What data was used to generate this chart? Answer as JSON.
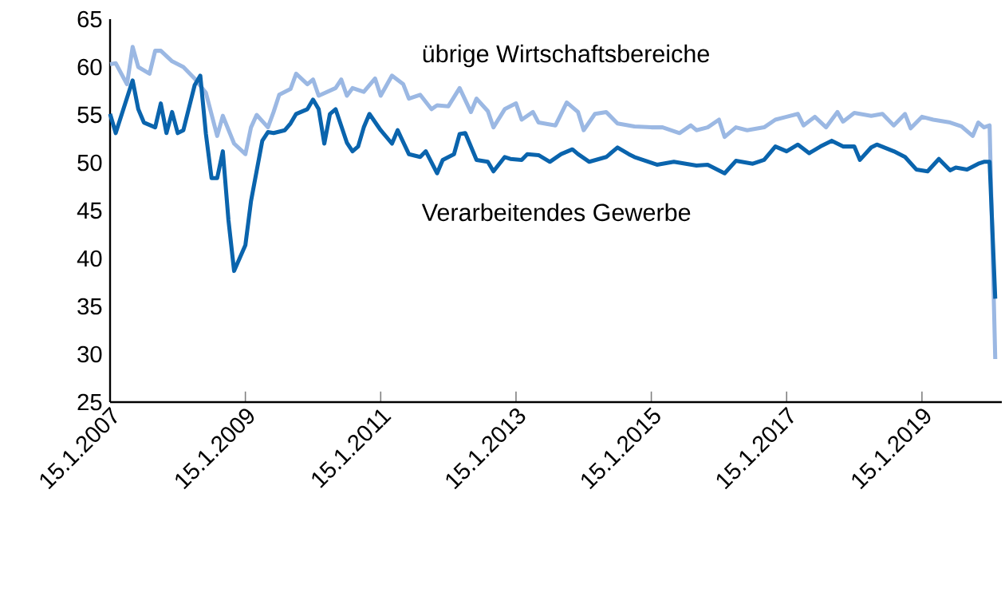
{
  "chart_data": {
    "type": "line",
    "xlim": [
      "2007-01-15",
      "2020-03-20"
    ],
    "ylim": [
      25,
      65
    ],
    "yticks": [
      25,
      30,
      35,
      40,
      45,
      50,
      55,
      60,
      65
    ],
    "xticks": [
      {
        "value": "2007-01-15",
        "label": "15.1.2007"
      },
      {
        "value": "2009-01-15",
        "label": "15.1.2009"
      },
      {
        "value": "2011-01-15",
        "label": "15.1.2011"
      },
      {
        "value": "2013-01-15",
        "label": "15.1.2013"
      },
      {
        "value": "2015-01-15",
        "label": "15.1.2015"
      },
      {
        "value": "2017-01-15",
        "label": "15.1.2017"
      },
      {
        "value": "2019-01-15",
        "label": "15.1.2019"
      }
    ],
    "grid": false,
    "legend": false,
    "series": [
      {
        "name": "übrige Wirtschaftsbereiche",
        "color": "#9bb8e3",
        "x": [
          "2007-01-15",
          "2007-02",
          "2007-04",
          "2007-05",
          "2007-06",
          "2007-08",
          "2007-09",
          "2007-10",
          "2007-12",
          "2008-02",
          "2008-04",
          "2008-06",
          "2008-08",
          "2008-09",
          "2008-11",
          "2009-01",
          "2009-02",
          "2009-03",
          "2009-05",
          "2009-06",
          "2009-07",
          "2009-09",
          "2009-10",
          "2009-12",
          "2010-01",
          "2010-02",
          "2010-05",
          "2010-06",
          "2010-07",
          "2010-08",
          "2010-10",
          "2010-12",
          "2011-01",
          "2011-03",
          "2011-05",
          "2011-06",
          "2011-08",
          "2011-10",
          "2011-11",
          "2012-01",
          "2012-03",
          "2012-05",
          "2012-06",
          "2012-08",
          "2012-09",
          "2012-11",
          "2013-01",
          "2013-02",
          "2013-04",
          "2013-05",
          "2013-08",
          "2013-10",
          "2013-12",
          "2014-01",
          "2014-03",
          "2014-05",
          "2014-07",
          "2014-10",
          "2015-01",
          "2015-03",
          "2015-06",
          "2015-08",
          "2015-09",
          "2015-11",
          "2016-01",
          "2016-02",
          "2016-04",
          "2016-06",
          "2016-09",
          "2016-11",
          "2017-01",
          "2017-03",
          "2017-04",
          "2017-06",
          "2017-08",
          "2017-10",
          "2017-11",
          "2018-01",
          "2018-04",
          "2018-06",
          "2018-08",
          "2018-10",
          "2018-11",
          "2019-01",
          "2019-03",
          "2019-06",
          "2019-08",
          "2019-10",
          "2019-11",
          "2019-12",
          "2020-01",
          "2020-02"
        ],
        "values": [
          60.3,
          60.4,
          58.2,
          62.1,
          60,
          59.3,
          61.7,
          61.7,
          60.6,
          60,
          58.8,
          57.3,
          52.8,
          54.9,
          52,
          50.9,
          53.7,
          55,
          53.7,
          55.3,
          57.1,
          57.7,
          59.3,
          58.2,
          58.7,
          57,
          57.8,
          58.7,
          57,
          57.8,
          57.4,
          58.8,
          57,
          59.1,
          58.2,
          56.7,
          57.1,
          55.6,
          56,
          55.9,
          57.8,
          55.3,
          56.7,
          55.4,
          53.7,
          55.6,
          56.2,
          54.5,
          55.3,
          54.2,
          53.9,
          56.3,
          55.3,
          53.4,
          55.1,
          55.3,
          54.1,
          53.8,
          53.7,
          53.7,
          53.1,
          53.9,
          53.4,
          53.7,
          54.5,
          52.7,
          53.7,
          53.4,
          53.7,
          54.5,
          54.8,
          55.1,
          53.9,
          54.8,
          53.7,
          55.3,
          54.3,
          55.2,
          54.9,
          55.1,
          53.9,
          55.1,
          53.6,
          54.8,
          54.5,
          54.2,
          53.8,
          52.8,
          54.2,
          53.7,
          53.9,
          29.5
        ]
      },
      {
        "name": "Verarbeitendes Gewerbe",
        "color": "#0a64ad",
        "x": [
          "2007-01-15",
          "2007-02",
          "2007-05",
          "2007-06",
          "2007-07",
          "2007-09",
          "2007-10",
          "2007-11",
          "2007-12",
          "2008-01",
          "2008-02",
          "2008-04",
          "2008-05",
          "2008-06",
          "2008-07",
          "2008-08",
          "2008-09",
          "2008-10",
          "2008-11",
          "2009-01",
          "2009-02",
          "2009-04",
          "2009-05",
          "2009-06",
          "2009-08",
          "2009-09",
          "2009-10",
          "2009-12",
          "2010-01",
          "2010-02",
          "2010-03",
          "2010-04",
          "2010-05",
          "2010-07",
          "2010-08",
          "2010-09",
          "2010-10",
          "2010-11",
          "2011-01",
          "2011-03",
          "2011-04",
          "2011-06",
          "2011-08",
          "2011-09",
          "2011-11",
          "2011-12",
          "2012-02",
          "2012-03",
          "2012-04",
          "2012-06",
          "2012-08",
          "2012-09",
          "2012-11",
          "2012-12",
          "2013-02",
          "2013-03",
          "2013-05",
          "2013-07",
          "2013-09",
          "2013-11",
          "2013-12",
          "2014-02",
          "2014-05",
          "2014-07",
          "2014-09",
          "2014-10",
          "2015-02",
          "2015-05",
          "2015-09",
          "2015-11",
          "2016-02",
          "2016-04",
          "2016-07",
          "2016-09",
          "2016-11",
          "2017-01",
          "2017-03",
          "2017-05",
          "2017-07",
          "2017-09",
          "2017-11",
          "2018-01",
          "2018-02",
          "2018-04",
          "2018-05",
          "2018-08",
          "2018-10",
          "2018-12",
          "2019-02",
          "2019-04",
          "2019-06",
          "2019-07",
          "2019-09",
          "2019-11",
          "2019-12",
          "2020-01",
          "2020-02"
        ],
        "values": [
          55.1,
          53.1,
          58.6,
          55.6,
          54.2,
          53.7,
          56.2,
          53.1,
          55.3,
          53.1,
          53.4,
          58.1,
          59.1,
          53,
          48.4,
          48.4,
          51.2,
          44,
          38.7,
          41.4,
          46,
          52.3,
          53.2,
          53.1,
          53.4,
          54.1,
          55.1,
          55.6,
          56.6,
          55.6,
          52,
          55.1,
          55.6,
          52.1,
          51.2,
          51.7,
          53.7,
          55.1,
          53.4,
          52,
          53.4,
          50.9,
          50.6,
          51.2,
          48.9,
          50.3,
          50.9,
          53,
          53.1,
          50.3,
          50.1,
          49.1,
          50.6,
          50.4,
          50.3,
          50.9,
          50.8,
          50.1,
          50.9,
          51.4,
          50.9,
          50.1,
          50.6,
          51.6,
          50.9,
          50.6,
          49.8,
          50.1,
          49.7,
          49.8,
          48.9,
          50.2,
          49.9,
          50.3,
          51.7,
          51.2,
          51.9,
          51,
          51.7,
          52.3,
          51.7,
          51.7,
          50.3,
          51.6,
          51.9,
          51.2,
          50.6,
          49.3,
          49.1,
          50.4,
          49.2,
          49.5,
          49.3,
          49.9,
          50.1,
          50.1,
          35.8
        ]
      }
    ]
  }
}
